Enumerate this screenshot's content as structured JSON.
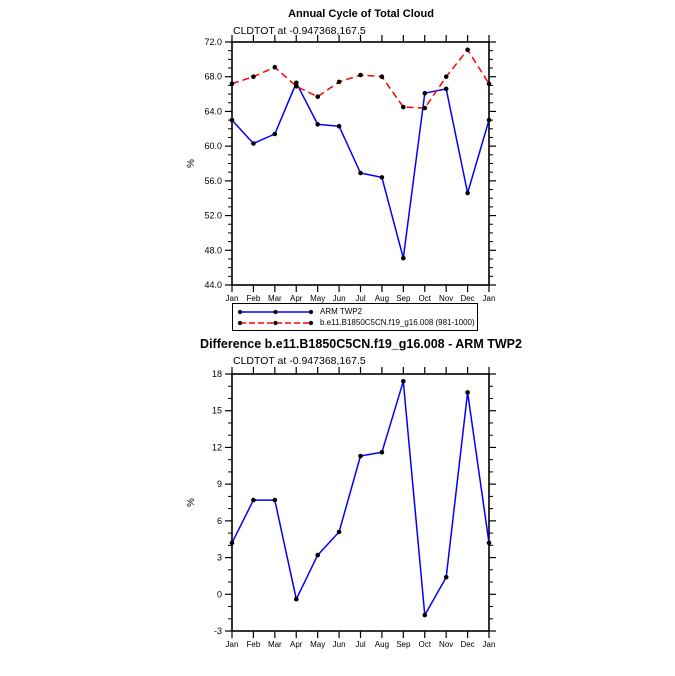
{
  "page_title": "Annual Cycle of Total Cloud",
  "colors": {
    "axis": "#000000",
    "background": "#ffffff",
    "obs_line": "#0000ff",
    "model_line": "#ff0000",
    "marker": "#000000"
  },
  "chart_data": [
    {
      "type": "line",
      "title": "Annual Cycle of Total Cloud",
      "subtitle": "CLDTOT at -0.947368,167.5",
      "ylabel": "%",
      "ylim": [
        44.0,
        72.0
      ],
      "ytick_major": 4,
      "ytick_minor": 1,
      "ytick_format": "1dp",
      "grid": false,
      "legend_position": "boxed-below-plot",
      "categories": [
        "Jan",
        "Feb",
        "Mar",
        "Apr",
        "May",
        "Jun",
        "Jul",
        "Aug",
        "Sep",
        "Oct",
        "Nov",
        "Dec",
        "Jan"
      ],
      "series": [
        {
          "name": "ARM TWP2",
          "color": "#0000ff",
          "line_style": "solid",
          "marker": "filled-circle",
          "marker_color": "#000000",
          "values": [
            63.0,
            60.3,
            61.4,
            67.3,
            62.5,
            62.3,
            56.9,
            56.4,
            47.1,
            66.1,
            66.6,
            54.6,
            63.0
          ]
        },
        {
          "name": "b.e11.B1850C5CN.f19_g16.008 (981-1000)",
          "color": "#ff0000",
          "line_style": "dashed",
          "marker": "filled-circle",
          "marker_color": "#000000",
          "values": [
            67.2,
            68.0,
            69.1,
            66.9,
            65.7,
            67.4,
            68.2,
            68.0,
            64.5,
            64.4,
            68.0,
            71.1,
            67.2
          ]
        }
      ]
    },
    {
      "type": "line",
      "title": "Difference b.e11.B1850C5CN.f19_g16.008 - ARM TWP2",
      "subtitle": "CLDTOT at -0.947368,167.5",
      "ylabel": "%",
      "ylim": [
        -3,
        18
      ],
      "ytick_major": 3,
      "ytick_minor": 1,
      "ytick_format": "int",
      "grid": false,
      "legend_position": "none",
      "categories": [
        "Jan",
        "Feb",
        "Mar",
        "Apr",
        "May",
        "Jun",
        "Jul",
        "Aug",
        "Sep",
        "Oct",
        "Nov",
        "Dec",
        "Jan"
      ],
      "series": [
        {
          "name": "b.e11.B1850C5CN.f19_g16.008 - ARM TWP2",
          "color": "#0000ff",
          "line_style": "solid",
          "marker": "filled-circle",
          "marker_color": "#000000",
          "values": [
            4.2,
            7.7,
            7.7,
            -0.4,
            3.2,
            5.1,
            11.3,
            11.6,
            17.4,
            -1.7,
            1.4,
            16.5,
            4.2
          ]
        }
      ]
    }
  ]
}
